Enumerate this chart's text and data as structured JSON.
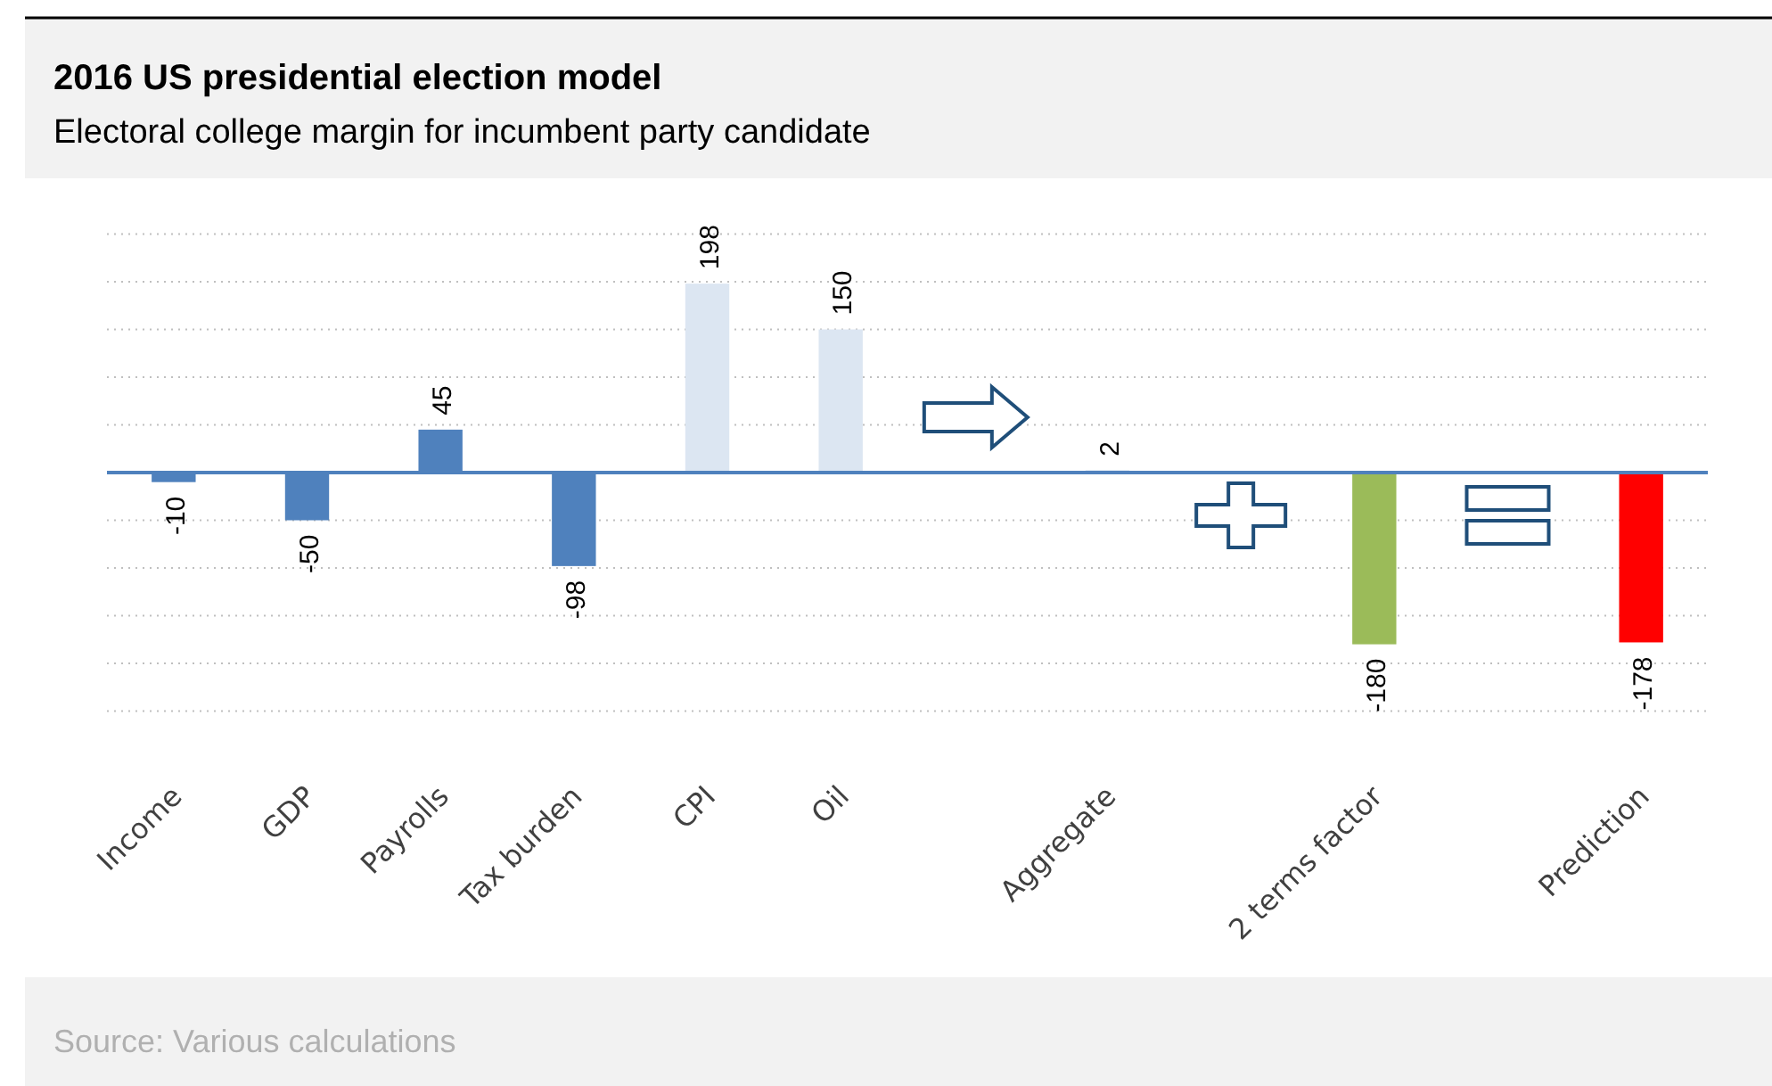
{
  "chart_data": {
    "type": "bar",
    "title": "2016 US presidential election model",
    "subtitle": "Electoral college margin for incumbent party candidate",
    "categories": [
      "Income",
      "GDP",
      "Payrolls",
      "Tax burden",
      "CPI",
      "Oil",
      null,
      "Aggregate",
      null,
      "2 terms factor",
      null,
      "Prediction"
    ],
    "values": [
      -10,
      -50,
      45,
      -98,
      198,
      150,
      null,
      2,
      null,
      -180,
      null,
      -178
    ],
    "colors": [
      "#4f81bd",
      "#4f81bd",
      "#4f81bd",
      "#4f81bd",
      "#dce6f2",
      "#dce6f2",
      null,
      "#4f81bd",
      null,
      "#9bbb59",
      null,
      "#ff0000"
    ],
    "ylim": [
      -250,
      250
    ],
    "yticks": [
      {
        "value": -250,
        "label": null
      },
      {
        "value": -200,
        "label": null
      },
      {
        "value": -150,
        "label": null
      },
      {
        "value": -100,
        "label": null
      },
      {
        "value": -50,
        "label": null
      },
      {
        "value": 0,
        "label": null
      },
      {
        "value": 50,
        "label": null
      },
      {
        "value": 100,
        "label": null
      },
      {
        "value": 150,
        "label": null
      },
      {
        "value": 200,
        "label": null
      },
      {
        "value": 250,
        "label": null
      }
    ],
    "grid": "y",
    "data_labels": true,
    "ref_lines": [
      {
        "axis": "y",
        "value": 0,
        "color": "#4f81bd"
      }
    ],
    "annotations": [
      "Source: Various calculations"
    ]
  }
}
